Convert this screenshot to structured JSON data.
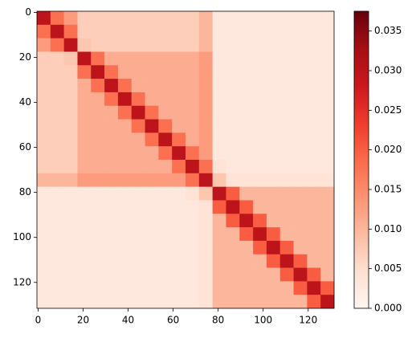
{
  "chart_data": {
    "type": "heatmap",
    "x": [
      0,
      6,
      12,
      18,
      24,
      30,
      36,
      42,
      48,
      54,
      60,
      66,
      72,
      78,
      84,
      90,
      96,
      102,
      108,
      114,
      120,
      126
    ],
    "y": [
      0,
      6,
      12,
      18,
      24,
      30,
      36,
      42,
      48,
      54,
      60,
      66,
      72,
      78,
      84,
      90,
      96,
      102,
      108,
      114,
      120,
      126
    ],
    "z": [
      [
        0.03,
        0.018,
        0.013,
        0.007,
        0.007,
        0.007,
        0.007,
        0.007,
        0.007,
        0.007,
        0.007,
        0.007,
        0.01,
        0.003,
        0.003,
        0.003,
        0.003,
        0.003,
        0.003,
        0.003,
        0.003,
        0.003
      ],
      [
        0.018,
        0.03,
        0.018,
        0.007,
        0.007,
        0.007,
        0.007,
        0.007,
        0.007,
        0.007,
        0.007,
        0.007,
        0.01,
        0.003,
        0.003,
        0.003,
        0.003,
        0.003,
        0.003,
        0.003,
        0.003,
        0.003
      ],
      [
        0.013,
        0.018,
        0.03,
        0.008,
        0.007,
        0.007,
        0.007,
        0.007,
        0.007,
        0.007,
        0.007,
        0.007,
        0.01,
        0.003,
        0.003,
        0.003,
        0.003,
        0.003,
        0.003,
        0.003,
        0.003,
        0.003
      ],
      [
        0.007,
        0.007,
        0.008,
        0.03,
        0.018,
        0.011,
        0.011,
        0.011,
        0.011,
        0.011,
        0.011,
        0.011,
        0.013,
        0.003,
        0.003,
        0.003,
        0.003,
        0.003,
        0.003,
        0.003,
        0.003,
        0.003
      ],
      [
        0.007,
        0.007,
        0.007,
        0.018,
        0.03,
        0.018,
        0.011,
        0.011,
        0.011,
        0.011,
        0.011,
        0.011,
        0.013,
        0.003,
        0.003,
        0.003,
        0.003,
        0.003,
        0.003,
        0.003,
        0.003,
        0.003
      ],
      [
        0.007,
        0.007,
        0.007,
        0.011,
        0.018,
        0.03,
        0.018,
        0.011,
        0.011,
        0.011,
        0.011,
        0.011,
        0.013,
        0.003,
        0.003,
        0.003,
        0.003,
        0.003,
        0.003,
        0.003,
        0.003,
        0.003
      ],
      [
        0.007,
        0.007,
        0.007,
        0.011,
        0.011,
        0.018,
        0.03,
        0.018,
        0.011,
        0.011,
        0.011,
        0.011,
        0.013,
        0.003,
        0.003,
        0.003,
        0.003,
        0.003,
        0.003,
        0.003,
        0.003,
        0.003
      ],
      [
        0.007,
        0.007,
        0.007,
        0.011,
        0.011,
        0.011,
        0.018,
        0.03,
        0.018,
        0.011,
        0.011,
        0.011,
        0.013,
        0.003,
        0.003,
        0.003,
        0.003,
        0.003,
        0.003,
        0.003,
        0.003,
        0.003
      ],
      [
        0.007,
        0.007,
        0.007,
        0.011,
        0.011,
        0.011,
        0.011,
        0.018,
        0.03,
        0.018,
        0.011,
        0.011,
        0.013,
        0.003,
        0.003,
        0.003,
        0.003,
        0.003,
        0.003,
        0.003,
        0.003,
        0.003
      ],
      [
        0.007,
        0.007,
        0.007,
        0.011,
        0.011,
        0.011,
        0.011,
        0.011,
        0.018,
        0.03,
        0.018,
        0.011,
        0.013,
        0.003,
        0.003,
        0.003,
        0.003,
        0.003,
        0.003,
        0.003,
        0.003,
        0.003
      ],
      [
        0.007,
        0.007,
        0.007,
        0.011,
        0.011,
        0.011,
        0.011,
        0.011,
        0.011,
        0.018,
        0.03,
        0.018,
        0.013,
        0.003,
        0.003,
        0.003,
        0.003,
        0.003,
        0.003,
        0.003,
        0.003,
        0.003
      ],
      [
        0.007,
        0.007,
        0.007,
        0.011,
        0.011,
        0.011,
        0.011,
        0.011,
        0.011,
        0.011,
        0.018,
        0.03,
        0.018,
        0.004,
        0.003,
        0.003,
        0.003,
        0.003,
        0.003,
        0.003,
        0.003,
        0.003
      ],
      [
        0.01,
        0.01,
        0.01,
        0.013,
        0.013,
        0.013,
        0.013,
        0.013,
        0.013,
        0.013,
        0.013,
        0.018,
        0.03,
        0.008,
        0.004,
        0.004,
        0.004,
        0.004,
        0.004,
        0.004,
        0.004,
        0.004
      ],
      [
        0.003,
        0.003,
        0.003,
        0.003,
        0.003,
        0.003,
        0.003,
        0.003,
        0.003,
        0.003,
        0.003,
        0.004,
        0.008,
        0.03,
        0.02,
        0.01,
        0.01,
        0.01,
        0.01,
        0.01,
        0.01,
        0.01
      ],
      [
        0.003,
        0.003,
        0.003,
        0.003,
        0.003,
        0.003,
        0.003,
        0.003,
        0.003,
        0.003,
        0.003,
        0.003,
        0.004,
        0.02,
        0.03,
        0.02,
        0.01,
        0.01,
        0.01,
        0.01,
        0.01,
        0.01
      ],
      [
        0.003,
        0.003,
        0.003,
        0.003,
        0.003,
        0.003,
        0.003,
        0.003,
        0.003,
        0.003,
        0.003,
        0.003,
        0.004,
        0.01,
        0.02,
        0.03,
        0.02,
        0.01,
        0.01,
        0.01,
        0.01,
        0.01
      ],
      [
        0.003,
        0.003,
        0.003,
        0.003,
        0.003,
        0.003,
        0.003,
        0.003,
        0.003,
        0.003,
        0.003,
        0.003,
        0.004,
        0.01,
        0.01,
        0.02,
        0.03,
        0.02,
        0.01,
        0.01,
        0.01,
        0.01
      ],
      [
        0.003,
        0.003,
        0.003,
        0.003,
        0.003,
        0.003,
        0.003,
        0.003,
        0.003,
        0.003,
        0.003,
        0.003,
        0.004,
        0.01,
        0.01,
        0.01,
        0.02,
        0.03,
        0.02,
        0.01,
        0.01,
        0.01
      ],
      [
        0.003,
        0.003,
        0.003,
        0.003,
        0.003,
        0.003,
        0.003,
        0.003,
        0.003,
        0.003,
        0.003,
        0.003,
        0.004,
        0.01,
        0.01,
        0.01,
        0.01,
        0.02,
        0.03,
        0.02,
        0.01,
        0.01
      ],
      [
        0.003,
        0.003,
        0.003,
        0.003,
        0.003,
        0.003,
        0.003,
        0.003,
        0.003,
        0.003,
        0.003,
        0.003,
        0.004,
        0.01,
        0.01,
        0.01,
        0.01,
        0.01,
        0.02,
        0.03,
        0.02,
        0.01
      ],
      [
        0.003,
        0.003,
        0.003,
        0.003,
        0.003,
        0.003,
        0.003,
        0.003,
        0.003,
        0.003,
        0.003,
        0.003,
        0.004,
        0.01,
        0.01,
        0.01,
        0.01,
        0.01,
        0.01,
        0.02,
        0.03,
        0.02
      ],
      [
        0.003,
        0.003,
        0.003,
        0.003,
        0.003,
        0.003,
        0.003,
        0.003,
        0.003,
        0.003,
        0.003,
        0.003,
        0.004,
        0.01,
        0.01,
        0.01,
        0.01,
        0.01,
        0.01,
        0.01,
        0.02,
        0.03
      ]
    ],
    "xlim": [
      -0.5,
      131.5
    ],
    "ylim": [
      131.5,
      -0.5
    ],
    "xticks": [
      0,
      20,
      40,
      60,
      80,
      100,
      120
    ],
    "yticks": [
      0,
      20,
      40,
      60,
      80,
      100,
      120
    ],
    "colormap": [
      "#fff5f0",
      "#fee0d2",
      "#fcbba1",
      "#fc9272",
      "#fb6a4a",
      "#ef3b2c",
      "#cb181d",
      "#a50f15",
      "#67000d"
    ],
    "clim": [
      0,
      0.0375
    ],
    "cticks": [
      {
        "value": 0,
        "label": "0.000"
      },
      {
        "value": 0.005,
        "label": "0.005"
      },
      {
        "value": 0.01,
        "label": "0.010"
      },
      {
        "value": 0.015,
        "label": "0.015"
      },
      {
        "value": 0.02,
        "label": "0.020"
      },
      {
        "value": 0.025,
        "label": "0.025"
      },
      {
        "value": 0.03,
        "label": "0.030"
      },
      {
        "value": 0.035,
        "label": "0.035"
      }
    ]
  }
}
